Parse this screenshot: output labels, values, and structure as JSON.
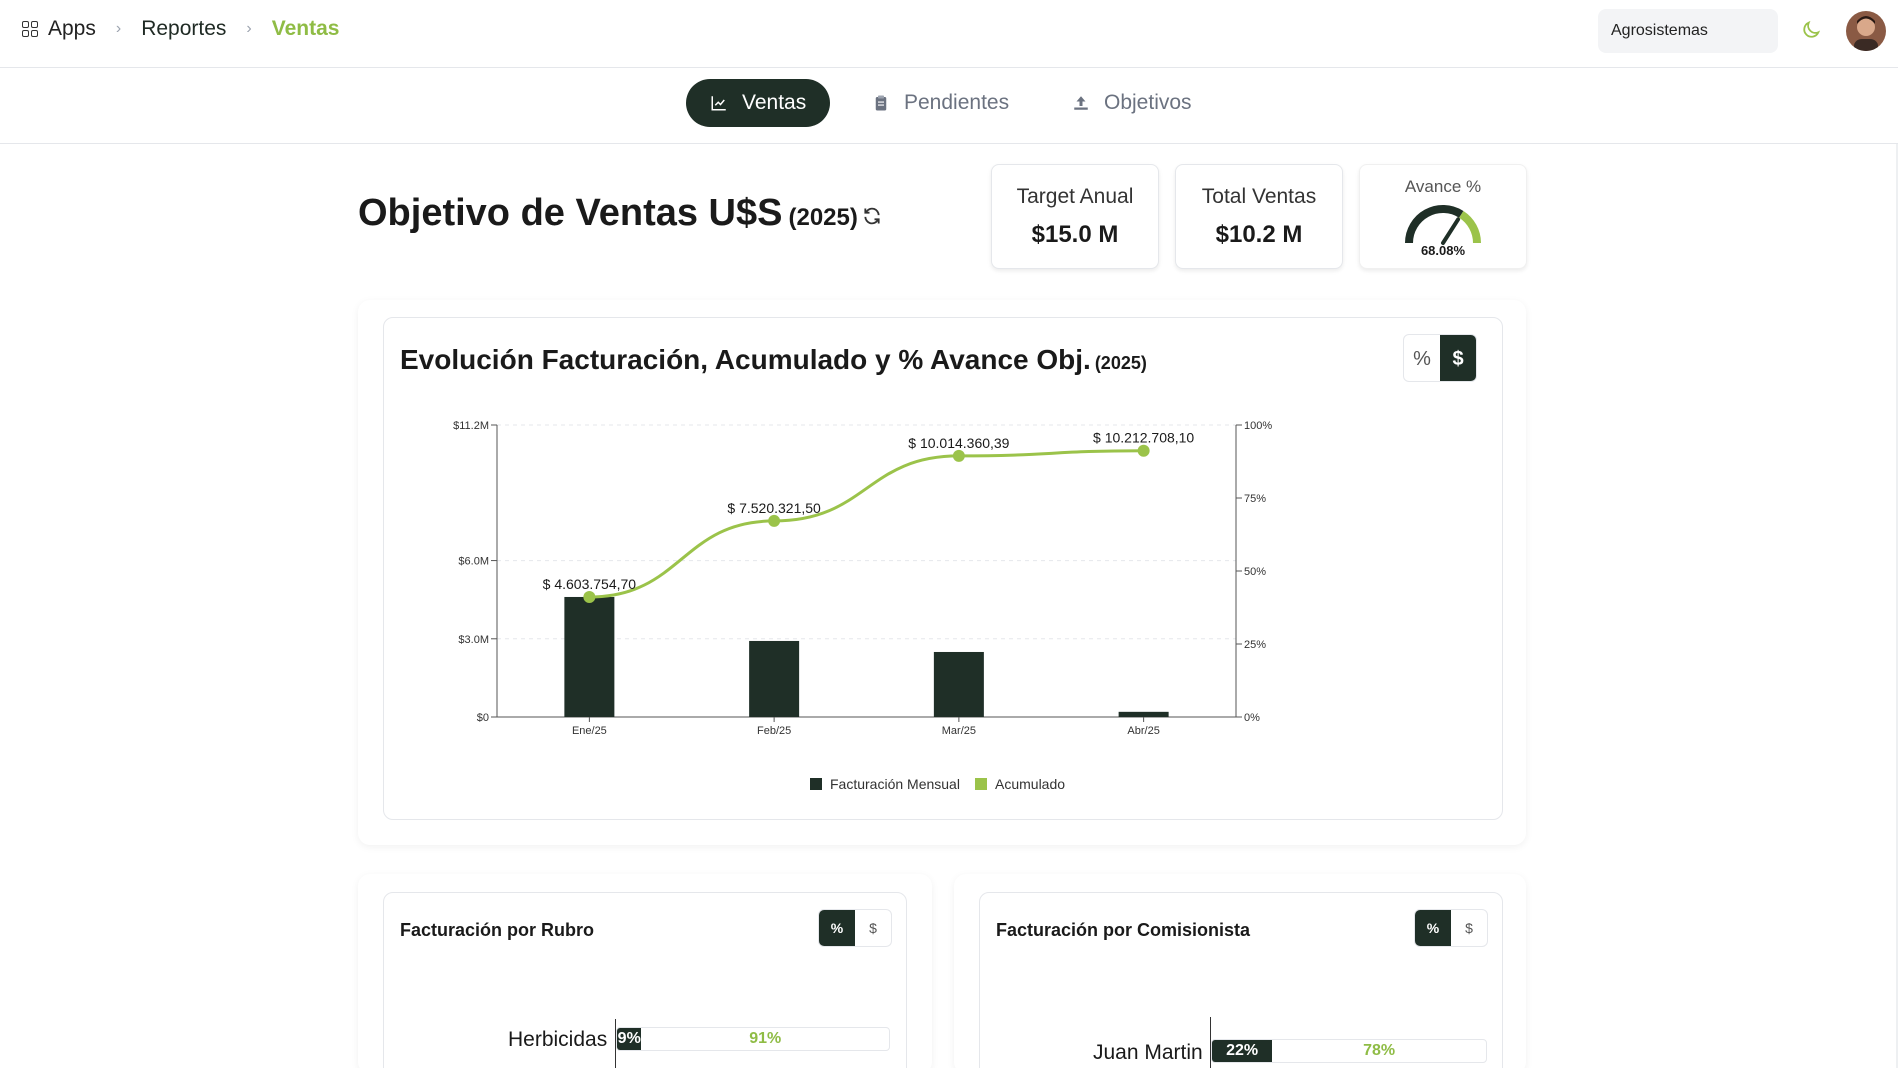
{
  "breadcrumb": {
    "apps": "Apps",
    "reportes": "Reportes",
    "current": "Ventas"
  },
  "company_selector": {
    "value": "Agrosistemas"
  },
  "tabs": [
    {
      "label": "Ventas",
      "icon": "chart-line-icon",
      "active": true
    },
    {
      "label": "Pendientes",
      "icon": "clipboard-icon",
      "active": false
    },
    {
      "label": "Objetivos",
      "icon": "upload-icon",
      "active": false
    }
  ],
  "header": {
    "title": "Objetivo de Ventas U$S",
    "year": "(2025)"
  },
  "kpis": {
    "target": {
      "label": "Target Anual",
      "value": "$15.0 M"
    },
    "total": {
      "label": "Total Ventas",
      "value": "$10.2 M"
    },
    "avance": {
      "label": "Avance %",
      "value": "68.08%",
      "fraction": 0.6808
    }
  },
  "main_chart": {
    "title": "Evolución Facturación, Acumulado y % Avance Obj.",
    "year": "(2025)",
    "toggle": {
      "percent": "%",
      "dollar": "$",
      "active": "$"
    }
  },
  "chart_data": {
    "type": "bar",
    "categories": [
      "Ene/25",
      "Feb/25",
      "Mar/25",
      "Abr/25"
    ],
    "series": [
      {
        "name": "Facturación Mensual",
        "type": "bar",
        "values": [
          4603754.7,
          2916566.8,
          2494038.89,
          198347.71
        ],
        "color": "#1f2f27"
      },
      {
        "name": "Acumulado",
        "type": "line",
        "values": [
          4603754.7,
          7520321.5,
          10014360.39,
          10212708.1
        ],
        "labels": [
          "$ 4.603.754,70",
          "$ 7.520.321,50",
          "$ 10.014.360,39",
          "$ 10.212.708,10"
        ],
        "color": "#9bc34a"
      }
    ],
    "y_left_ticks": [
      "$0",
      "$3.0M",
      "$6.0M",
      "$11.2M"
    ],
    "y_left_tick_values": [
      0,
      3000000,
      6000000,
      11200000
    ],
    "y_right_ticks": [
      "0%",
      "25%",
      "50%",
      "75%",
      "100%"
    ],
    "ylim": [
      0,
      11200000
    ],
    "grid": true,
    "legend_position": "bottom"
  },
  "rubro_card": {
    "title": "Facturación por Rubro",
    "toggle": {
      "percent": "%",
      "dollar": "$",
      "active": "%"
    },
    "rows": [
      {
        "label": "Herbicidas",
        "part1": "9%",
        "part2": "91%",
        "fraction": 0.09
      }
    ]
  },
  "comisionista_card": {
    "title": "Facturación por Comisionista",
    "toggle": {
      "percent": "%",
      "dollar": "$",
      "active": "%"
    },
    "rows": [
      {
        "label": "Juan Martin",
        "part1": "22%",
        "part2": "78%",
        "fraction": 0.22
      }
    ]
  }
}
